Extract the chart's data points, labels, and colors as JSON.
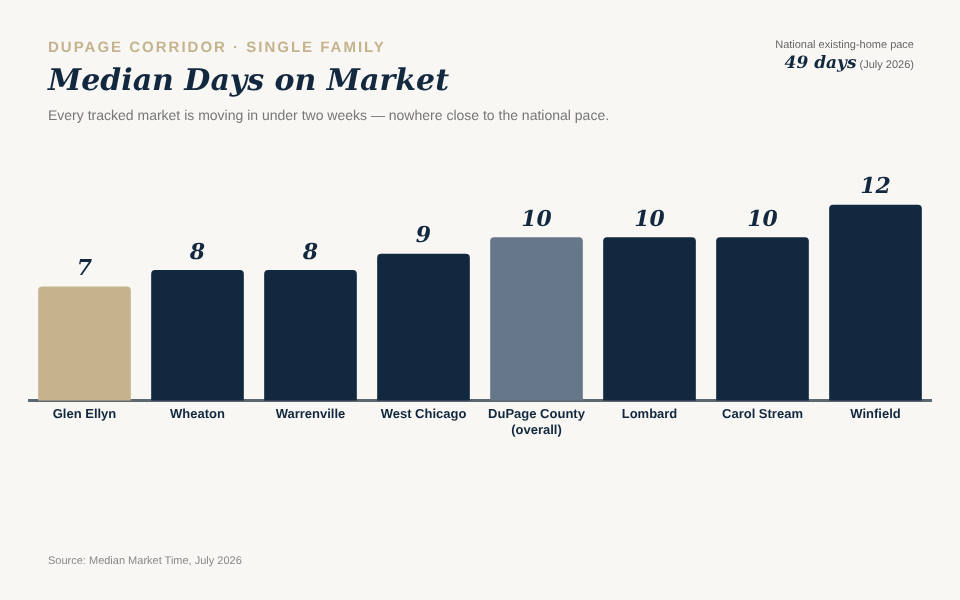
{
  "chart_data": {
    "type": "bar",
    "title": "Median Days on Market",
    "subtitle": "Every tracked market is moving in under two weeks — nowhere close to the national pace.",
    "categories": [
      "Glen Ellyn",
      "Wheaton",
      "Warrenville",
      "West Chicago",
      "DuPage County\n(overall)",
      "Lombard",
      "Carol Stream",
      "Winfield"
    ],
    "values": [
      7,
      8,
      8,
      9,
      10,
      10,
      10,
      12
    ],
    "colors": [
      "#c4b38c",
      "#12283f",
      "#12283f",
      "#12283f",
      "#66778a",
      "#12283f",
      "#12283f",
      "#12283f"
    ],
    "data_labels": true,
    "grid": false,
    "legend": false,
    "tick_labels": "x",
    "annotations": [
      "DUPAGE CORRIDOR · SINGLE FAMILY",
      "National existing-home pace",
      "49 days",
      "(July 2026)",
      "Source: Median Market Time, July 2026"
    ]
  }
}
